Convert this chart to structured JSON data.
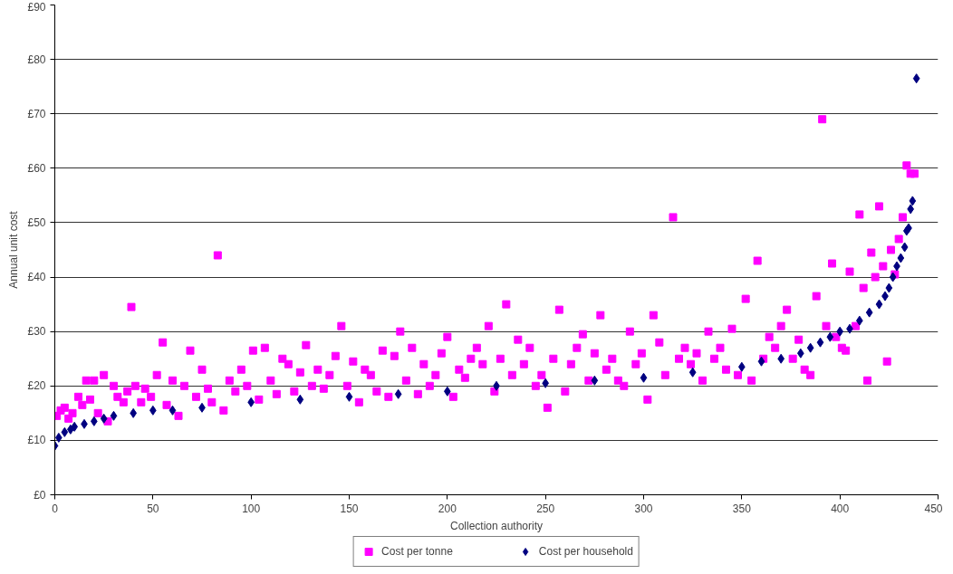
{
  "chart_data": {
    "type": "scatter",
    "xlabel": "Collection authority",
    "ylabel": "Annual unit cost",
    "xlim": [
      0,
      450
    ],
    "xticks": [
      0,
      50,
      100,
      150,
      200,
      250,
      300,
      350,
      400,
      450
    ],
    "ylim": [
      0,
      90
    ],
    "yticks": [
      {
        "value": 0,
        "label": "£0"
      },
      {
        "value": 10,
        "label": "£10"
      },
      {
        "value": 20,
        "label": "£20"
      },
      {
        "value": 30,
        "label": "£30"
      },
      {
        "value": 40,
        "label": "£40"
      },
      {
        "value": 50,
        "label": "£50"
      },
      {
        "value": 60,
        "label": "£60"
      },
      {
        "value": 70,
        "label": "£70"
      },
      {
        "value": 80,
        "label": "£80"
      },
      {
        "value": 90,
        "label": "£90"
      }
    ],
    "grid": "y",
    "legend": "bottom",
    "series": [
      {
        "name": "Cost per tonne",
        "color": "#ff00ff",
        "marker": "square",
        "x": [
          1,
          3,
          5,
          7,
          9,
          12,
          14,
          16,
          18,
          20,
          22,
          25,
          27,
          30,
          32,
          35,
          37,
          39,
          41,
          44,
          46,
          49,
          52,
          55,
          57,
          60,
          63,
          66,
          69,
          72,
          75,
          78,
          80,
          83,
          86,
          89,
          92,
          95,
          98,
          101,
          104,
          107,
          110,
          113,
          116,
          119,
          122,
          125,
          128,
          131,
          134,
          137,
          140,
          143,
          146,
          149,
          152,
          155,
          158,
          161,
          164,
          167,
          170,
          173,
          176,
          179,
          182,
          185,
          188,
          191,
          194,
          197,
          200,
          203,
          206,
          209,
          212,
          215,
          218,
          221,
          224,
          227,
          230,
          233,
          236,
          239,
          242,
          245,
          248,
          251,
          254,
          257,
          260,
          263,
          266,
          269,
          272,
          275,
          278,
          281,
          284,
          287,
          290,
          293,
          296,
          299,
          302,
          305,
          308,
          311,
          315,
          318,
          321,
          324,
          327,
          330,
          333,
          336,
          339,
          342,
          345,
          348,
          352,
          355,
          358,
          361,
          364,
          367,
          370,
          373,
          376,
          379,
          382,
          385,
          388,
          391,
          393,
          396,
          398,
          401,
          403,
          405,
          408,
          410,
          412,
          414,
          416,
          418,
          420,
          422,
          424,
          426,
          428,
          430,
          432,
          434,
          436,
          438
        ],
        "values": [
          14.5,
          15.5,
          16,
          14,
          15,
          18,
          16.5,
          21,
          17.5,
          21,
          15,
          22,
          13.5,
          20,
          18,
          17,
          19,
          34.5,
          20,
          17,
          19.5,
          18,
          22,
          28,
          16.5,
          21,
          14.5,
          20,
          26.5,
          18,
          23,
          19.5,
          17,
          44,
          15.5,
          21,
          19,
          23,
          20,
          26.5,
          17.5,
          27,
          21,
          18.5,
          25,
          24,
          19,
          22.5,
          27.5,
          20,
          23,
          19.5,
          22,
          25.5,
          31,
          20,
          24.5,
          17,
          23,
          22,
          19,
          26.5,
          18,
          25.5,
          30,
          21,
          27,
          18.5,
          24,
          20,
          22,
          26,
          29,
          18,
          23,
          21.5,
          25,
          27,
          24,
          31,
          19,
          25,
          35,
          22,
          28.5,
          24,
          27,
          20,
          22,
          16,
          25,
          34,
          19,
          24,
          27,
          29.5,
          21,
          26,
          33,
          23,
          25,
          21,
          20,
          30,
          24,
          26,
          17.5,
          33,
          28,
          22,
          51,
          25,
          27,
          24,
          26,
          21,
          30,
          25,
          27,
          23,
          30.5,
          22,
          36,
          21,
          43,
          25,
          29,
          27,
          31,
          34,
          25,
          28.5,
          23,
          22,
          36.5,
          69,
          31,
          42.5,
          29,
          27,
          26.5,
          41,
          31,
          51.5,
          38,
          21,
          44.5,
          40,
          53,
          42,
          24.5,
          45,
          40.5,
          47,
          51,
          60.5,
          59,
          59
        ]
      },
      {
        "name": "Cost per household",
        "color": "#000080",
        "marker": "diamond",
        "x": [
          0,
          2,
          5,
          8,
          10,
          15,
          20,
          25,
          30,
          40,
          50,
          60,
          75,
          100,
          125,
          150,
          175,
          200,
          225,
          250,
          275,
          300,
          325,
          350,
          360,
          370,
          380,
          385,
          390,
          395,
          400,
          405,
          410,
          415,
          420,
          423,
          425,
          427,
          429,
          431,
          433,
          434,
          435,
          436,
          437,
          439
        ],
        "values": [
          9,
          10.5,
          11.5,
          12,
          12.5,
          13,
          13.5,
          14,
          14.5,
          15,
          15.5,
          15.5,
          16,
          17,
          17.5,
          18,
          18.5,
          19,
          20,
          20.5,
          21,
          21.5,
          22.5,
          23.5,
          24.5,
          25,
          26,
          27,
          28,
          29,
          30,
          30.5,
          32,
          33.5,
          35,
          36.5,
          38,
          40,
          42,
          43.5,
          45.5,
          48.5,
          49,
          52.5,
          54,
          76.5
        ]
      }
    ]
  }
}
